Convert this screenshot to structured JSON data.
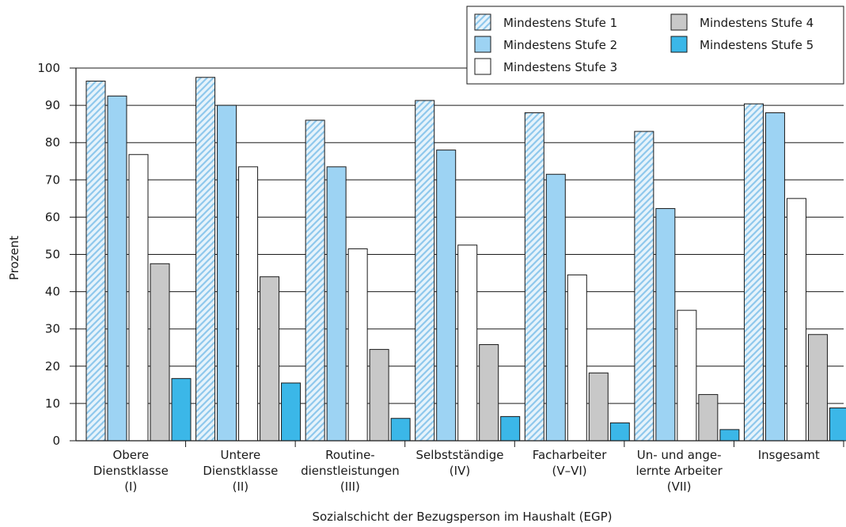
{
  "chart_data": {
    "type": "bar",
    "xlabel": "Sozialschicht der Bezugsperson im Haushalt (EGP)",
    "ylabel": "Prozent",
    "ylim": [
      0,
      100
    ],
    "yticks": [
      0,
      10,
      20,
      30,
      40,
      50,
      60,
      70,
      80,
      90,
      100
    ],
    "grid": true,
    "legend_position": "top-right",
    "categories": [
      [
        "Obere",
        "Dienstklasse",
        "(I)"
      ],
      [
        "Untere",
        "Dienstklasse",
        "(II)"
      ],
      [
        "Routine-",
        "dienstleistungen",
        "(III)"
      ],
      [
        "Selbstständige",
        "(IV)"
      ],
      [
        "Facharbeiter",
        "(V–VI)"
      ],
      [
        "Un- und ange-",
        "lernte Arbeiter",
        "(VII)"
      ],
      [
        "Insgesamt"
      ]
    ],
    "series": [
      {
        "name": "Mindestens Stufe 1",
        "color": "#b9dcf3",
        "pattern": "hatch",
        "values": [
          96.5,
          97.5,
          86,
          91.3,
          88,
          83,
          90.4
        ]
      },
      {
        "name": "Mindestens Stufe 2",
        "color": "#9dd3f3",
        "values": [
          92.5,
          90,
          73.5,
          78,
          71.5,
          62.3,
          88
        ]
      },
      {
        "name": "Mindestens Stufe 3",
        "color": "#ffffff",
        "values": [
          76.8,
          73.5,
          51.5,
          52.5,
          44.5,
          35,
          65
        ]
      },
      {
        "name": "Mindestens Stufe 4",
        "color": "#c8c8c8",
        "values": [
          47.5,
          44,
          24.5,
          25.8,
          18.2,
          12.4,
          28.5
        ]
      },
      {
        "name": "Mindestens Stufe 5",
        "color": "#3bb7e8",
        "values": [
          16.7,
          15.5,
          6,
          6.5,
          4.8,
          3,
          8.8
        ]
      }
    ],
    "legend_order": [
      0,
      3,
      1,
      4,
      2
    ]
  }
}
